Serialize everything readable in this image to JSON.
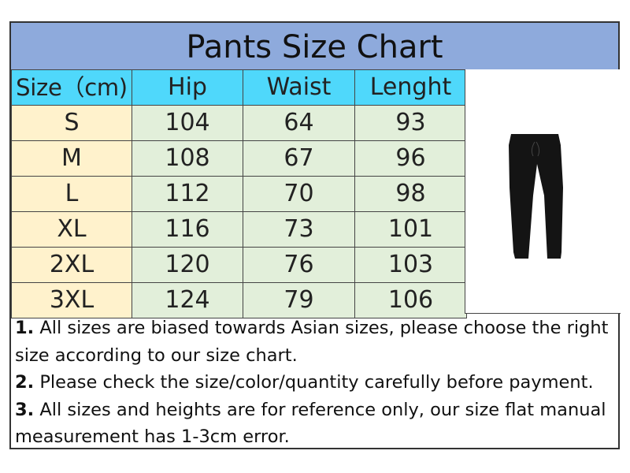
{
  "title": "Pants Size Chart",
  "headers": [
    "Size（cm)",
    "Hip",
    "Waist",
    "Lenght"
  ],
  "rows": [
    {
      "size": "S",
      "hip": "104",
      "waist": "64",
      "length": "93"
    },
    {
      "size": "M",
      "hip": "108",
      "waist": "67",
      "length": "96"
    },
    {
      "size": "L",
      "hip": "112",
      "waist": "70",
      "length": "98"
    },
    {
      "size": "XL",
      "hip": "116",
      "waist": "73",
      "length": "101"
    },
    {
      "size": "2XL",
      "hip": "120",
      "waist": "76",
      "length": "103"
    },
    {
      "size": "3XL",
      "hip": "124",
      "waist": "79",
      "length": "106"
    }
  ],
  "image": {
    "icon": "black-jogger-pants"
  },
  "notes": [
    {
      "num": "1.",
      "text": " All sizes are biased towards Asian sizes, please choose the right size according to our size chart."
    },
    {
      "num": "2.",
      "text": " Please check the size/color/quantity carefully before payment."
    },
    {
      "num": "3.",
      "text": " All sizes and heights are for reference only, our size flat manual measurement has 1-3cm error."
    }
  ],
  "colors": {
    "title_bg": "#8eaadc",
    "header_bg": "#4fd8fb",
    "size_col_bg": "#fff2cc",
    "value_bg": "#e2efda"
  }
}
